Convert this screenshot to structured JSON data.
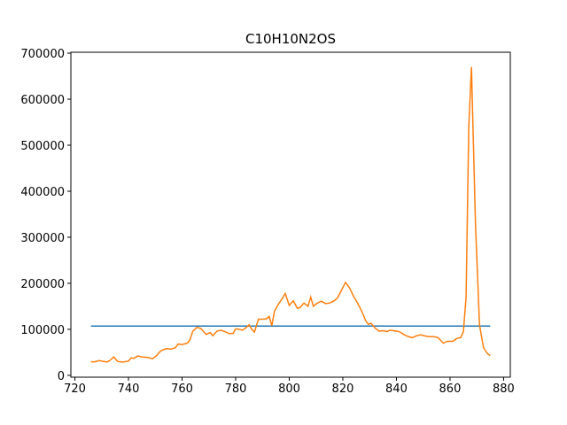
{
  "chart_data": {
    "type": "line",
    "title": "C10H10N2OS",
    "xlim": [
      718.5,
      882.5
    ],
    "xticks": [
      720,
      740,
      760,
      780,
      800,
      820,
      840,
      860,
      880
    ],
    "ylim": [
      -4000,
      702000
    ],
    "yticks": [
      0,
      100000,
      200000,
      300000,
      400000,
      500000,
      600000,
      700000
    ],
    "series": [
      {
        "color": "#1f77b4",
        "x": [
          726,
          875
        ],
        "values": [
          107000,
          107000
        ]
      },
      {
        "color": "#ff7f0e",
        "x": [
          726,
          727,
          729,
          731,
          732,
          733,
          734.5,
          736,
          738,
          740,
          741,
          742,
          743.5,
          745,
          747,
          749,
          750.5,
          752,
          754,
          756,
          757.5,
          758.5,
          760,
          762,
          763,
          764,
          765.5,
          767,
          768,
          769,
          770.5,
          771.5,
          773,
          774.5,
          776,
          777.5,
          779,
          780,
          781.5,
          782.5,
          784,
          785,
          786,
          787,
          788.5,
          790,
          791.5,
          792.5,
          793.5,
          794.5,
          796,
          797.5,
          798.5,
          800,
          801.5,
          803,
          804,
          805.5,
          807,
          808,
          809,
          810.5,
          812,
          813.5,
          815,
          816.5,
          818,
          819.5,
          821,
          822.5,
          824,
          825.5,
          827,
          828.5,
          829.5,
          830.5,
          832,
          833.5,
          835,
          836.5,
          837.5,
          839,
          841,
          843,
          844.5,
          846,
          847.5,
          849,
          850.5,
          852,
          854,
          855.5,
          856.5,
          857.5,
          859,
          861,
          862.5,
          864,
          865,
          866,
          867,
          868,
          869.5,
          871,
          872.5,
          874,
          875
        ],
        "values": [
          30000,
          29000,
          32000,
          30000,
          29000,
          32000,
          40000,
          30000,
          29000,
          31000,
          38000,
          37000,
          42000,
          40000,
          39000,
          36000,
          43000,
          53000,
          58000,
          57000,
          60000,
          68000,
          67000,
          70000,
          78000,
          96000,
          104000,
          102000,
          95000,
          89000,
          93000,
          86000,
          96000,
          98000,
          95000,
          91000,
          91000,
          101000,
          100000,
          98000,
          104000,
          110000,
          100000,
          94000,
          122000,
          122000,
          123000,
          128000,
          108000,
          140000,
          155000,
          168000,
          178000,
          152000,
          162000,
          146000,
          147000,
          157000,
          150000,
          170000,
          150000,
          157000,
          161000,
          156000,
          157000,
          161000,
          168000,
          185000,
          202000,
          190000,
          172000,
          157000,
          140000,
          119000,
          111000,
          113000,
          103000,
          96000,
          97000,
          95000,
          98000,
          97000,
          95000,
          88000,
          84000,
          82000,
          86000,
          88000,
          86000,
          84000,
          84000,
          82000,
          76000,
          70000,
          74000,
          74000,
          80000,
          82000,
          95000,
          170000,
          540000,
          670000,
          330000,
          110000,
          60000,
          47000,
          43000
        ]
      }
    ]
  }
}
